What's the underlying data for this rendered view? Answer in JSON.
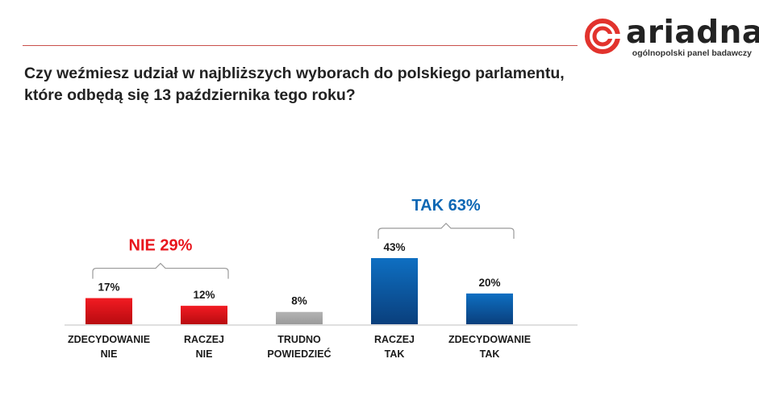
{
  "header": {
    "logo_text": "ariadna",
    "logo_tagline": "ogólnopolski panel badawczy",
    "question_lines": [
      "Czy weźmiesz udział w najbliższych wyborach do polskiego parlamentu,",
      "które odbędą się 13 października tego roku?"
    ]
  },
  "colors": {
    "accent_line": "#c9504b",
    "red": "#e8151c",
    "gray": "#a6a6a6",
    "blue": "#0d67b4",
    "logo_red": "#e2332d"
  },
  "chart_data": {
    "type": "bar",
    "categories": [
      [
        "ZDECYDOWANIE",
        "NIE"
      ],
      [
        "RACZEJ",
        "NIE"
      ],
      [
        "TRUDNO",
        "POWIEDZIEĆ"
      ],
      [
        "RACZEJ",
        "TAK"
      ],
      [
        "ZDECYDOWANIE",
        "TAK"
      ]
    ],
    "values": [
      17,
      12,
      8,
      43,
      20
    ],
    "value_labels": [
      "17%",
      "12%",
      "8%",
      "43%",
      "20%"
    ],
    "bar_colors": [
      "red",
      "red",
      "gray",
      "blue",
      "blue"
    ],
    "groups": [
      {
        "label": "NIE 29%",
        "from": 0,
        "to": 1,
        "color": "red"
      },
      {
        "label": "TAK 63%",
        "from": 3,
        "to": 4,
        "color": "blue"
      }
    ],
    "ylim": [
      0,
      43
    ]
  }
}
